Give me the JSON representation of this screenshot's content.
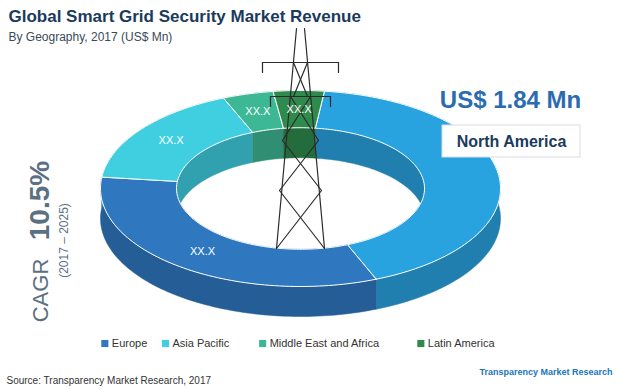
{
  "chart_data": {
    "type": "donut",
    "title": "Global Smart Grid Security Market Revenue",
    "subtitle": "By Geography, 2017 (US$ Mn)",
    "categories": [
      "North America",
      "Europe",
      "Asia Pacific",
      "Middle East and Africa",
      "Latin America"
    ],
    "values": [
      1.84,
      1.45,
      0.74,
      0.18,
      0.18
    ],
    "colors": [
      "#29a3e0",
      "#2f78c0",
      "#40cfe0",
      "#3db894",
      "#2f8a4e"
    ],
    "value_labels": [
      null,
      "XX.X",
      "XX.X",
      "XX.X",
      "XX.X"
    ],
    "data_labels": true,
    "legend": "bottom",
    "callout": {
      "category": "North America",
      "label": "US$ 1.84 Mn"
    },
    "annotations": {
      "cagr_label": "CAGR",
      "cagr_value": "10.5%",
      "cagr_period": "(2017 – 2025)"
    },
    "source": "Source: Transparency Market Research, 2017",
    "logo": "Transparency Market Research"
  }
}
